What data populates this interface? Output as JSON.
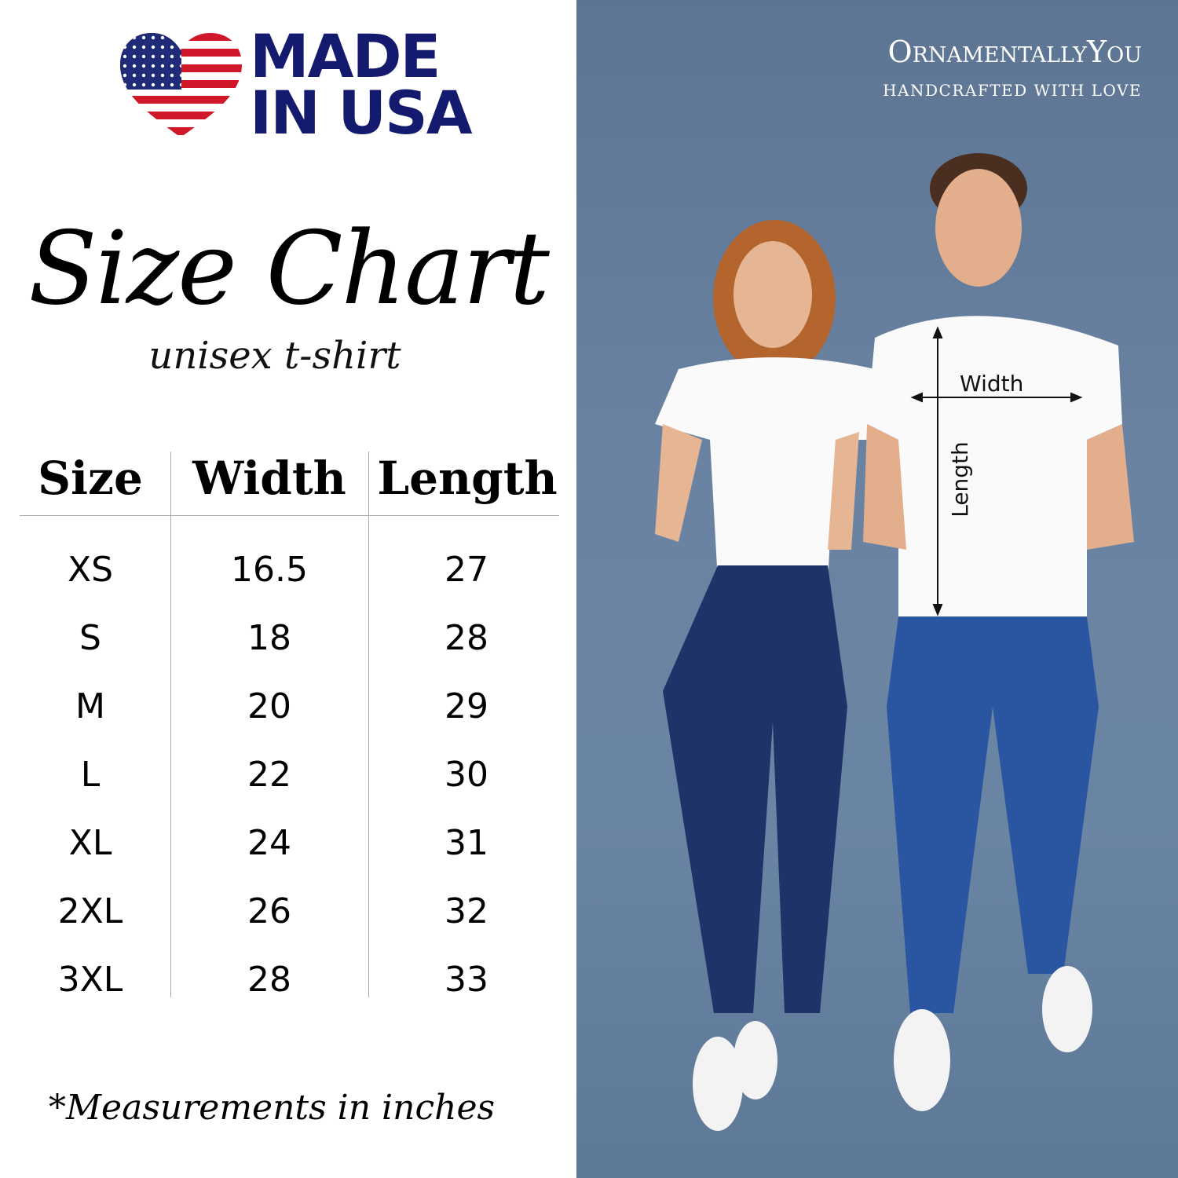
{
  "badge": {
    "line1": "MADE",
    "line2": "IN USA",
    "icon": "us-flag-heart-icon",
    "colors": {
      "navy": "#141a6e",
      "red": "#d0182a"
    }
  },
  "title": "Size Chart",
  "subtitle": "unisex t-shirt",
  "table": {
    "headers": [
      "Size",
      "Width",
      "Length"
    ],
    "rows": [
      [
        "XS",
        "16.5",
        "27"
      ],
      [
        "S",
        "18",
        "28"
      ],
      [
        "M",
        "20",
        "29"
      ],
      [
        "L",
        "22",
        "30"
      ],
      [
        "XL",
        "24",
        "31"
      ],
      [
        "2XL",
        "26",
        "32"
      ],
      [
        "3XL",
        "28",
        "33"
      ]
    ]
  },
  "footnote": "*Measurements in inches",
  "brand": {
    "name": "OrnamentallyYou",
    "tagline": "HANDCRAFTED WITH LOVE"
  },
  "photo": {
    "width_label": "Width",
    "length_label": "Length",
    "background": "#6a83a2"
  }
}
